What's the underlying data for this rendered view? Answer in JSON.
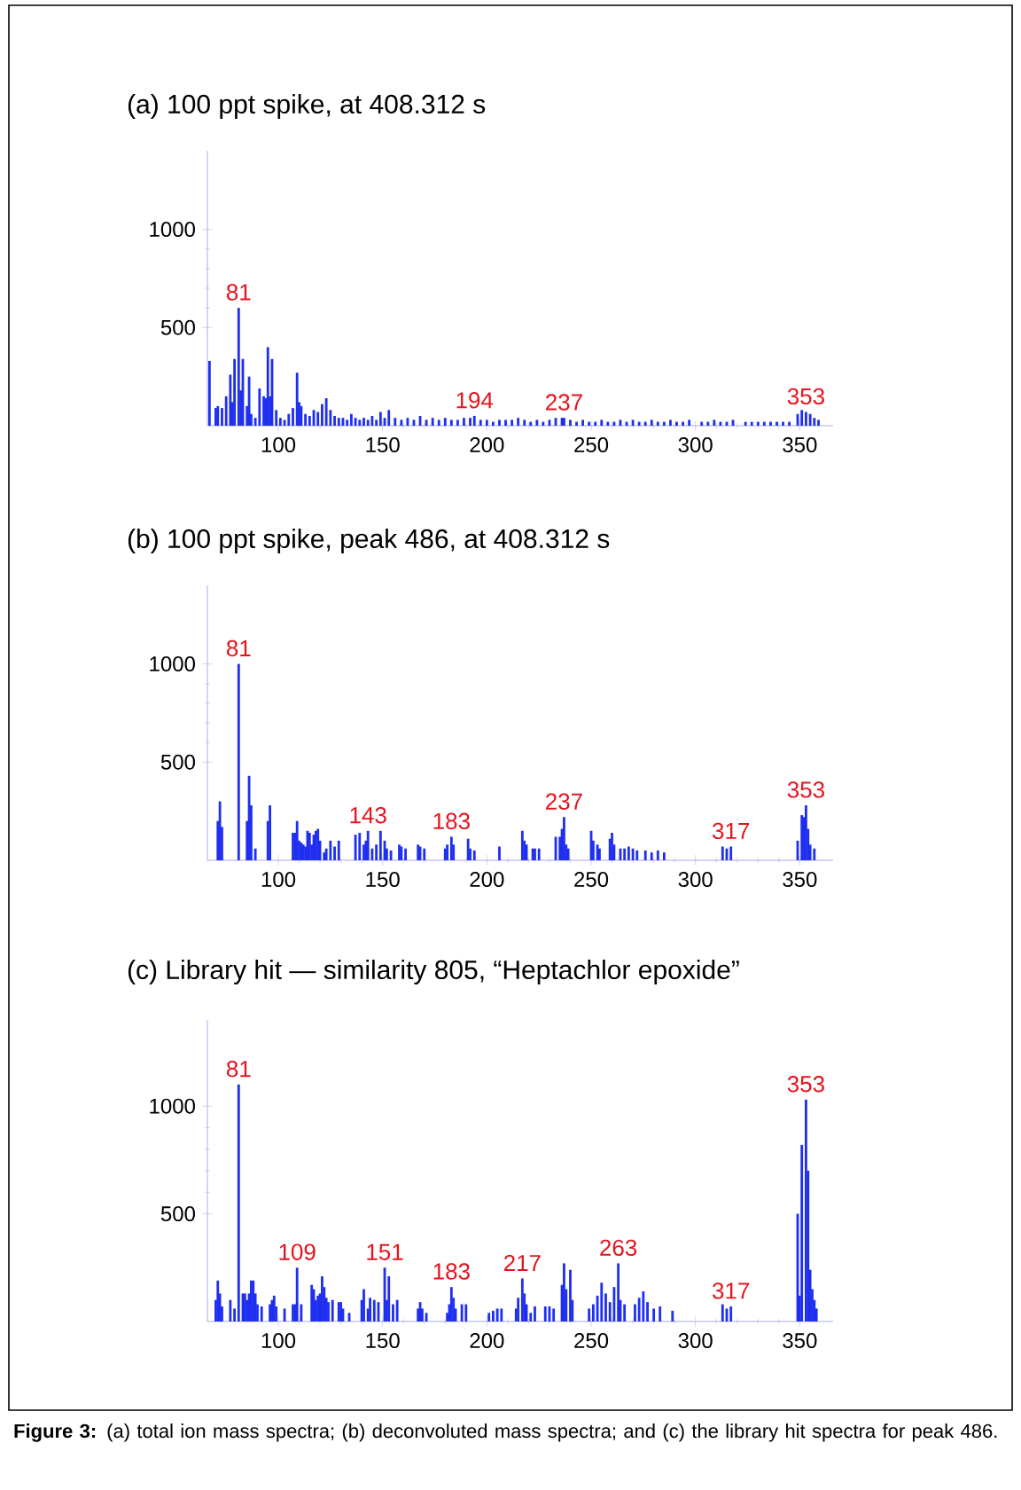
{
  "chart_data": [
    {
      "type": "bar",
      "title": "(a) 100 ppt spike, at 408.312 s",
      "color": "#1f2ff0",
      "xlim": [
        66,
        366
      ],
      "xticks": [
        100,
        150,
        200,
        250,
        300,
        350
      ],
      "ylim": [
        0,
        1400
      ],
      "yticks": [
        500,
        1000
      ],
      "x": [
        67,
        70,
        71,
        73,
        75,
        77,
        78,
        79,
        81,
        82,
        83,
        85,
        86,
        87,
        89,
        91,
        93,
        94,
        95,
        96,
        97,
        99,
        101,
        103,
        105,
        107,
        109,
        110,
        111,
        113,
        115,
        117,
        119,
        121,
        123,
        125,
        127,
        129,
        131,
        133,
        135,
        137,
        139,
        141,
        143,
        145,
        147,
        149,
        151,
        153,
        156,
        159,
        162,
        165,
        168,
        171,
        174,
        177,
        180,
        183,
        186,
        189,
        192,
        194,
        197,
        200,
        203,
        206,
        209,
        212,
        215,
        218,
        221,
        224,
        227,
        230,
        233,
        236,
        237,
        240,
        243,
        246,
        249,
        252,
        255,
        258,
        261,
        264,
        267,
        270,
        273,
        276,
        279,
        282,
        285,
        288,
        291,
        294,
        297,
        303,
        306,
        309,
        312,
        315,
        318,
        324,
        327,
        330,
        333,
        336,
        339,
        342,
        345,
        349,
        351,
        353,
        355,
        357,
        359
      ],
      "values": [
        330,
        90,
        100,
        90,
        150,
        260,
        120,
        340,
        600,
        180,
        340,
        100,
        250,
        60,
        40,
        190,
        150,
        140,
        400,
        150,
        340,
        80,
        40,
        30,
        60,
        90,
        270,
        120,
        100,
        60,
        50,
        80,
        70,
        110,
        140,
        80,
        50,
        40,
        40,
        30,
        60,
        40,
        30,
        40,
        30,
        50,
        30,
        70,
        40,
        80,
        40,
        30,
        40,
        30,
        50,
        30,
        40,
        30,
        40,
        30,
        30,
        40,
        40,
        50,
        30,
        30,
        20,
        30,
        30,
        30,
        40,
        30,
        20,
        30,
        20,
        30,
        40,
        40,
        40,
        30,
        20,
        30,
        20,
        20,
        30,
        20,
        20,
        30,
        20,
        30,
        20,
        20,
        30,
        20,
        20,
        30,
        20,
        20,
        30,
        20,
        20,
        30,
        20,
        20,
        30,
        20,
        20,
        20,
        20,
        20,
        20,
        20,
        20,
        60,
        80,
        70,
        60,
        40,
        30
      ],
      "annotations": [
        {
          "text": "81",
          "x": 81,
          "y": 600
        },
        {
          "text": "194",
          "x": 194,
          "y": 50
        },
        {
          "text": "237",
          "x": 237,
          "y": 40
        },
        {
          "text": "353",
          "x": 353,
          "y": 70
        }
      ]
    },
    {
      "type": "bar",
      "title": "(b) 100 ppt spike, peak 486, at 408.312 s",
      "color": "#1f2ff0",
      "xlim": [
        66,
        366
      ],
      "xticks": [
        100,
        150,
        200,
        250,
        300,
        350
      ],
      "ylim": [
        0,
        1400
      ],
      "yticks": [
        500,
        1000
      ],
      "x": [
        71,
        72,
        73,
        81,
        85,
        86,
        87,
        89,
        95,
        96,
        107,
        108,
        109,
        110,
        111,
        112,
        113,
        114,
        115,
        116,
        117,
        118,
        119,
        120,
        122,
        123,
        125,
        127,
        129,
        137,
        139,
        141,
        142,
        143,
        145,
        147,
        149,
        151,
        152,
        154,
        158,
        159,
        161,
        167,
        168,
        170,
        180,
        181,
        183,
        184,
        191,
        192,
        194,
        206,
        217,
        218,
        219,
        222,
        223,
        225,
        233,
        235,
        236,
        237,
        238,
        239,
        250,
        251,
        253,
        254,
        259,
        260,
        261,
        264,
        266,
        268,
        270,
        272,
        276,
        279,
        282,
        285,
        313,
        315,
        317,
        349,
        351,
        352,
        353,
        354,
        355,
        357
      ],
      "values": [
        200,
        300,
        170,
        1000,
        200,
        430,
        280,
        60,
        200,
        280,
        140,
        140,
        200,
        100,
        90,
        80,
        70,
        150,
        140,
        80,
        130,
        150,
        160,
        100,
        40,
        60,
        100,
        70,
        100,
        130,
        140,
        80,
        100,
        150,
        60,
        80,
        150,
        100,
        60,
        50,
        80,
        70,
        60,
        80,
        70,
        60,
        60,
        80,
        120,
        80,
        110,
        60,
        50,
        70,
        150,
        100,
        80,
        60,
        60,
        60,
        120,
        120,
        160,
        220,
        80,
        60,
        150,
        100,
        80,
        60,
        110,
        140,
        80,
        60,
        60,
        70,
        60,
        50,
        50,
        40,
        50,
        40,
        70,
        60,
        70,
        100,
        230,
        220,
        280,
        160,
        80,
        60
      ],
      "annotations": [
        {
          "text": "81",
          "x": 81,
          "y": 1000
        },
        {
          "text": "143",
          "x": 143,
          "y": 150
        },
        {
          "text": "183",
          "x": 183,
          "y": 120
        },
        {
          "text": "237",
          "x": 237,
          "y": 220
        },
        {
          "text": "317",
          "x": 317,
          "y": 70
        },
        {
          "text": "353",
          "x": 353,
          "y": 280
        }
      ]
    },
    {
      "type": "bar",
      "title": "(c) Library hit — similarity 805, “Heptachlor epoxide”",
      "color": "#1f2ff0",
      "xlim": [
        66,
        366
      ],
      "xticks": [
        100,
        150,
        200,
        250,
        300,
        350
      ],
      "ylim": [
        0,
        1400
      ],
      "yticks": [
        500,
        1000
      ],
      "x": [
        70,
        71,
        72,
        73,
        77,
        79,
        81,
        83,
        84,
        85,
        86,
        87,
        88,
        89,
        90,
        92,
        96,
        97,
        98,
        99,
        103,
        107,
        108,
        109,
        111,
        116,
        117,
        118,
        119,
        120,
        121,
        122,
        123,
        124,
        126,
        129,
        130,
        131,
        134,
        140,
        141,
        143,
        144,
        146,
        148,
        151,
        152,
        153,
        155,
        157,
        167,
        168,
        169,
        171,
        181,
        182,
        183,
        184,
        185,
        188,
        190,
        201,
        203,
        205,
        207,
        214,
        215,
        217,
        218,
        219,
        221,
        223,
        228,
        230,
        232,
        236,
        237,
        238,
        240,
        241,
        249,
        251,
        253,
        255,
        257,
        259,
        261,
        263,
        264,
        266,
        271,
        273,
        275,
        277,
        280,
        283,
        289,
        313,
        315,
        317,
        349,
        350,
        351,
        353,
        354,
        355,
        356,
        357,
        358
      ],
      "values": [
        100,
        190,
        130,
        70,
        100,
        60,
        1100,
        130,
        130,
        100,
        130,
        190,
        190,
        130,
        80,
        70,
        80,
        100,
        120,
        70,
        60,
        80,
        80,
        250,
        80,
        170,
        150,
        100,
        120,
        130,
        210,
        160,
        110,
        90,
        100,
        90,
        90,
        60,
        40,
        100,
        150,
        60,
        110,
        100,
        90,
        250,
        100,
        210,
        80,
        100,
        60,
        90,
        60,
        40,
        40,
        80,
        160,
        110,
        60,
        80,
        80,
        40,
        50,
        60,
        60,
        60,
        110,
        200,
        130,
        80,
        40,
        70,
        70,
        70,
        60,
        170,
        270,
        150,
        240,
        100,
        60,
        80,
        120,
        180,
        130,
        90,
        160,
        270,
        100,
        80,
        80,
        110,
        140,
        90,
        60,
        70,
        50,
        80,
        60,
        70,
        500,
        120,
        820,
        1030,
        700,
        240,
        150,
        100,
        60
      ],
      "annotations": [
        {
          "text": "81",
          "x": 81,
          "y": 1100
        },
        {
          "text": "109",
          "x": 109,
          "y": 250
        },
        {
          "text": "151",
          "x": 151,
          "y": 250
        },
        {
          "text": "183",
          "x": 183,
          "y": 160
        },
        {
          "text": "217",
          "x": 217,
          "y": 200
        },
        {
          "text": "263",
          "x": 263,
          "y": 270
        },
        {
          "text": "317",
          "x": 317,
          "y": 70
        },
        {
          "text": "353",
          "x": 353,
          "y": 1030
        },
        "**Figure 3:** (a) total ion mass spectra; (b) deconvoluted mass spectra; and (c) the library hit spectra for peak 486."
      ]
    }
  ]
}
